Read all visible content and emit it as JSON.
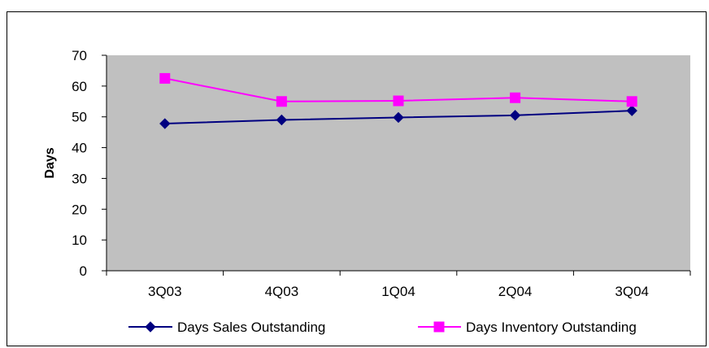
{
  "chart_data": {
    "type": "line",
    "title": "",
    "xlabel": "",
    "ylabel": "Days",
    "categories": [
      "3Q03",
      "4Q03",
      "1Q04",
      "2Q04",
      "3Q04"
    ],
    "ylim": [
      0,
      70
    ],
    "yticks": [
      0,
      10,
      20,
      30,
      40,
      50,
      60,
      70
    ],
    "grid": false,
    "plot_background": "#C0C0C0",
    "legend_position": "bottom",
    "series": [
      {
        "name": "Days Sales Outstanding",
        "values": [
          47.8,
          49.0,
          49.8,
          50.5,
          52.0
        ],
        "color": "#000080",
        "marker": "diamond"
      },
      {
        "name": "Days Inventory Outstanding",
        "values": [
          62.5,
          55.0,
          55.2,
          56.2,
          55.0
        ],
        "color": "#FF00FF",
        "marker": "square"
      }
    ]
  }
}
